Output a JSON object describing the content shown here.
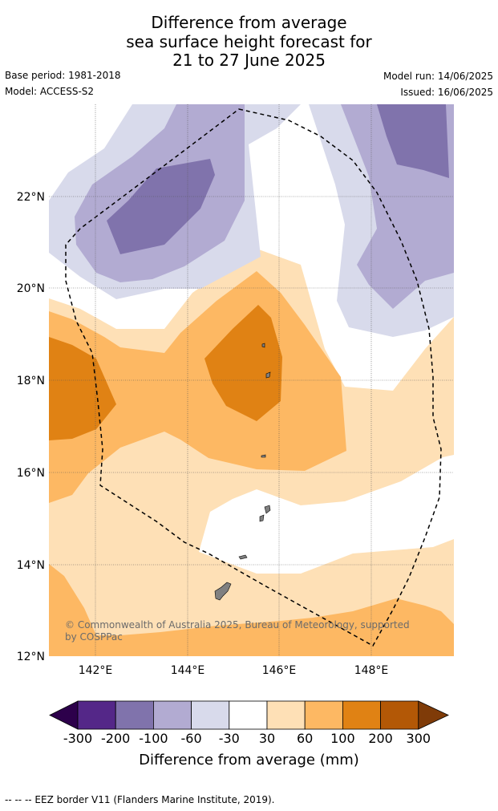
{
  "title": {
    "line1": "Difference from average",
    "line2": "sea surface height forecast for",
    "line3": "21 to 27 June 2025"
  },
  "meta": {
    "base_period": "Base period: 1981-2018",
    "model": "Model: ACCESS-S2",
    "model_run": "Model run: 14/06/2025",
    "issued": "Issued: 16/06/2025"
  },
  "map": {
    "lon_labels": [
      "142°E",
      "144°E",
      "146°E",
      "148°E"
    ],
    "lat_labels": [
      "22°N",
      "20°N",
      "18°N",
      "16°N",
      "14°N",
      "12°N"
    ],
    "copyright": "© Commonwealth of Australia 2025, Bureau of Meteorology, supported by COSPPac"
  },
  "colorbar": {
    "colors": [
      "#2d004b",
      "#542788",
      "#8073ac",
      "#b2abd2",
      "#d8daeb",
      "#ffffff",
      "#fee0b6",
      "#fdb863",
      "#e08214",
      "#b35806",
      "#7f3b08"
    ],
    "labels": [
      "-300",
      "-200",
      "-100",
      "-60",
      "-30",
      "30",
      "60",
      "100",
      "200",
      "300"
    ],
    "title": "Difference from average (mm)"
  },
  "footer": "--  --  -- EEZ border V11 (Flanders Marine Institute, 2019)."
}
